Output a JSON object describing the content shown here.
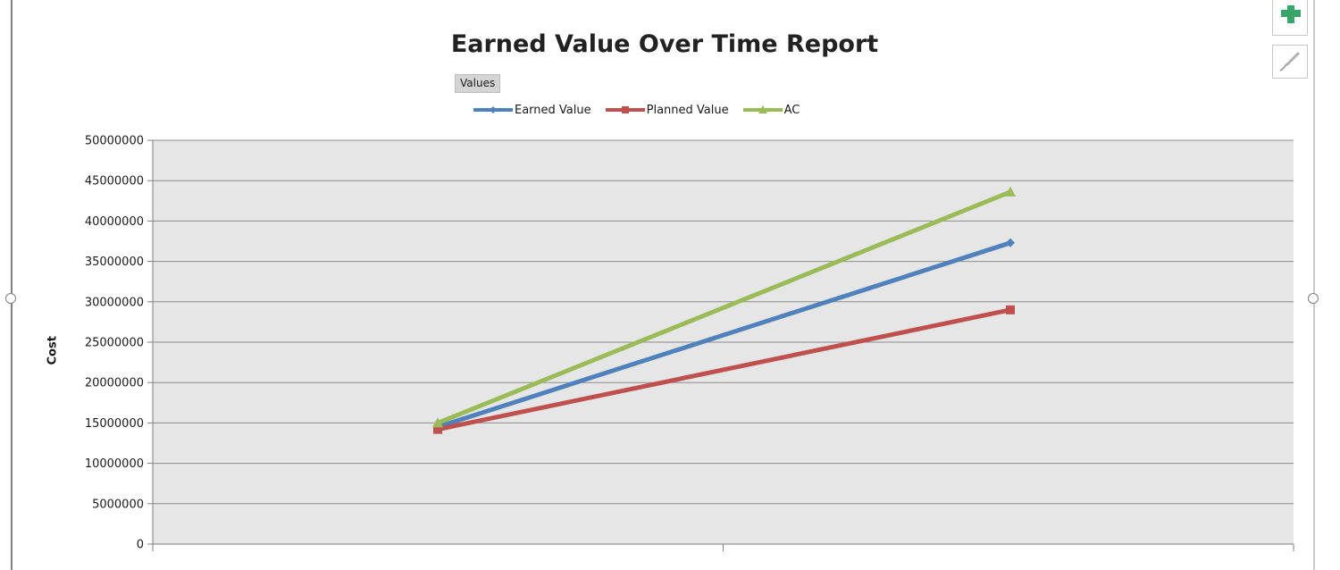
{
  "chart_data": {
    "type": "line",
    "title": "Earned Value Over Time Report",
    "field_button": "Values",
    "ylabel": "Cost",
    "xlabel": "",
    "ylim": [
      0,
      50000000
    ],
    "yticks": [
      "50000000",
      "45000000",
      "40000000",
      "35000000",
      "30000000",
      "25000000",
      "20000000",
      "15000000",
      "10000000",
      "5000000",
      "0"
    ],
    "x": [
      1,
      2
    ],
    "grid": true,
    "legend_position": "top",
    "plot_background": "#e6e6e6",
    "series": [
      {
        "name": "Earned Value",
        "color": "#4f81bd",
        "marker": "diamond",
        "values": [
          14500000,
          37300000
        ]
      },
      {
        "name": "Planned Value",
        "color": "#c0504d",
        "marker": "square",
        "values": [
          14200000,
          29000000
        ]
      },
      {
        "name": "AC",
        "color": "#9bbb59",
        "marker": "triangle",
        "values": [
          15000000,
          43600000
        ]
      }
    ]
  },
  "toolbar": {
    "plus_icon": "chart-elements-plus-icon",
    "brush_icon": "chart-styles-brush-icon",
    "plus_color": "#3aa36a"
  }
}
